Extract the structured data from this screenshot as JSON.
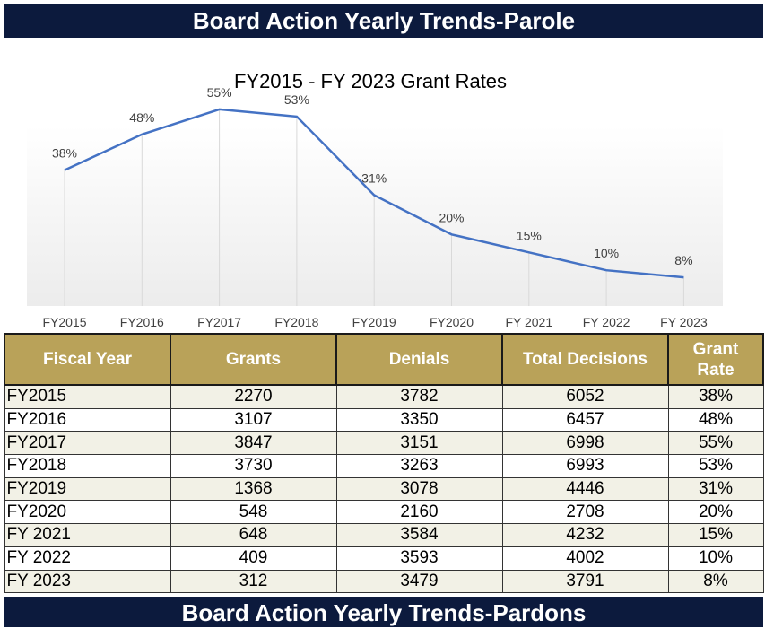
{
  "header": {
    "title": "Board Action Yearly Trends-Parole"
  },
  "footer": {
    "title": "Board Action Yearly Trends-Pardons"
  },
  "chart_data": {
    "type": "line",
    "title": "FY2015 - FY 2023 Grant Rates",
    "categories": [
      "FY2015",
      "FY2016",
      "FY2017",
      "FY2018",
      "FY2019",
      "FY2020",
      "FY 2021",
      "FY 2022",
      "FY 2023"
    ],
    "values": [
      38,
      48,
      55,
      53,
      31,
      20,
      15,
      10,
      8
    ],
    "data_labels": [
      "38%",
      "48%",
      "55%",
      "53%",
      "31%",
      "20%",
      "15%",
      "10%",
      "8%"
    ],
    "ylim": [
      0,
      60
    ],
    "grid": "vertical drop lines",
    "legend": "none",
    "line_color": "#4472c4"
  },
  "table": {
    "headers": [
      "Fiscal Year",
      "Grants",
      "Denials",
      "Total Decisions",
      "Grant Rate"
    ],
    "rows": [
      [
        "FY2015",
        "2270",
        "3782",
        "6052",
        "38%"
      ],
      [
        "FY2016",
        "3107",
        "3350",
        "6457",
        "48%"
      ],
      [
        "FY2017",
        "3847",
        "3151",
        "6998",
        "55%"
      ],
      [
        "FY2018",
        "3730",
        "3263",
        "6993",
        "53%"
      ],
      [
        "FY2019",
        "1368",
        "3078",
        "4446",
        "31%"
      ],
      [
        "FY2020",
        "548",
        "2160",
        "2708",
        "20%"
      ],
      [
        "FY 2021",
        "648",
        "3584",
        "4232",
        "15%"
      ],
      [
        "FY 2022",
        "409",
        "3593",
        "4002",
        "10%"
      ],
      [
        "FY 2023",
        "312",
        "3479",
        "3791",
        "8%"
      ]
    ]
  },
  "colors": {
    "banner": "#0c1a3d",
    "table_header": "#b9a259",
    "row_alt": "#f2f1e6"
  }
}
